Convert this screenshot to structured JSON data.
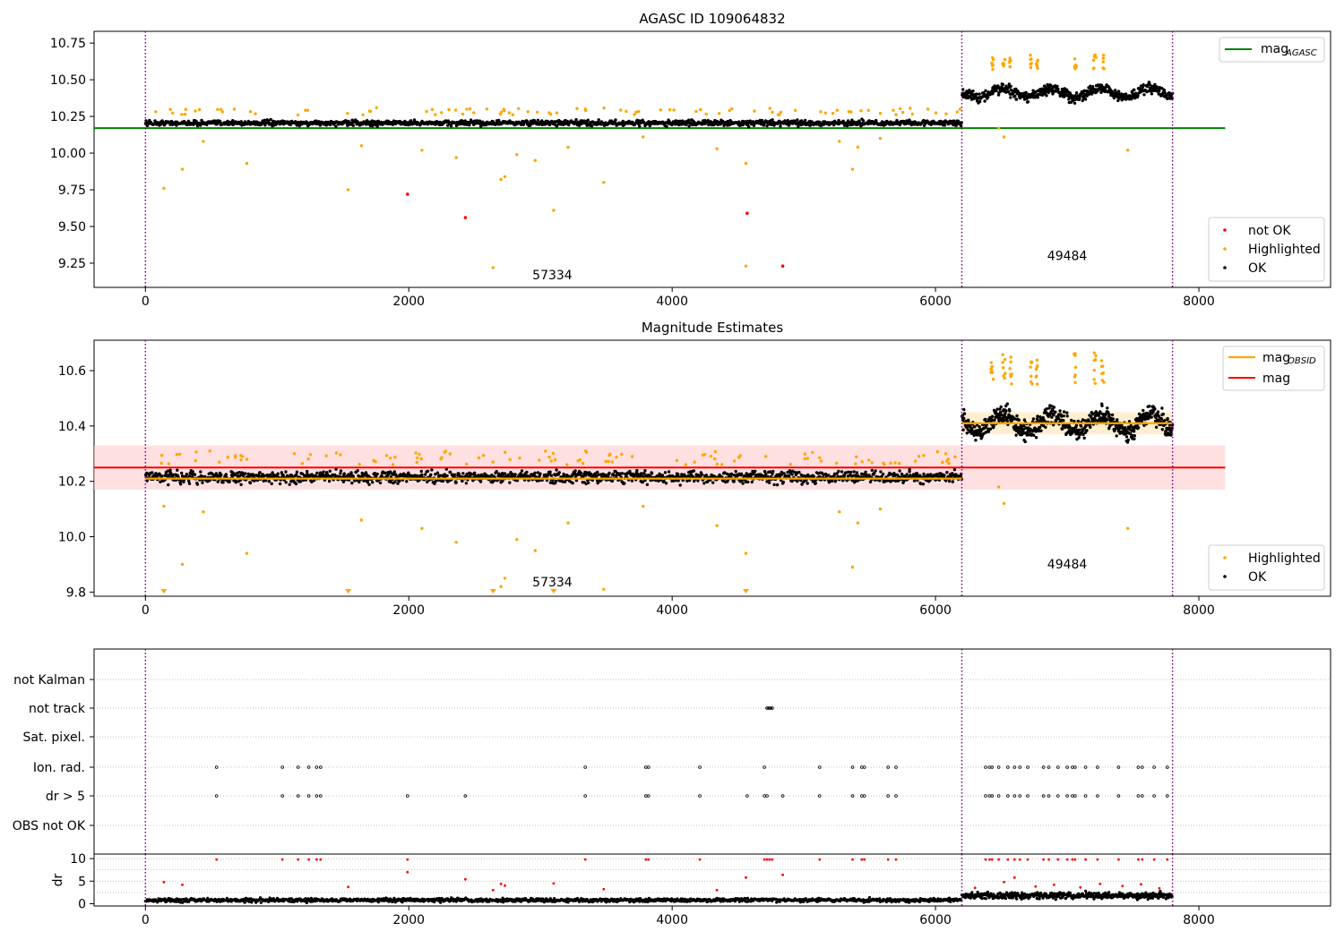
{
  "colors": {
    "ok": "#000000",
    "highlighted": "#ffa500",
    "not_ok": "#ff0000",
    "agasc_line": "#008000",
    "obsid_line": "#ffa500",
    "mag_line": "#ff0000",
    "band": "#ffcccc",
    "obs_boundary": "#800080",
    "grid": "#b0b0b0"
  },
  "chart_data": [
    {
      "type": "scatter",
      "title": "AGASC ID 109064832",
      "xlabel": "",
      "ylabel": "",
      "xlim": [
        -390,
        9000
      ],
      "ylim": [
        9.085,
        10.83
      ],
      "xticks": [
        "0",
        "2000",
        "4000",
        "6000",
        "8000"
      ],
      "yticks": [
        "9.25",
        "9.50",
        "9.75",
        "10.00",
        "10.25",
        "10.50",
        "10.75"
      ],
      "series": [
        {
          "name": "OK",
          "style": "dense band",
          "segments": [
            {
              "x": [
                0,
                6200
              ],
              "y": 10.205,
              "spread": 0.03
            },
            {
              "x": [
                6200,
                7800
              ],
              "y": 10.41,
              "spread": 0.06
            }
          ]
        },
        {
          "name": "Highlighted",
          "points": [
            [
              140,
              9.76
            ],
            [
              280,
              9.89
            ],
            [
              440,
              10.08
            ],
            [
              770,
              9.93
            ],
            [
              1540,
              9.75
            ],
            [
              1640,
              10.05
            ],
            [
              2100,
              10.02
            ],
            [
              2360,
              9.97
            ],
            [
              2640,
              9.22
            ],
            [
              2700,
              9.82
            ],
            [
              2730,
              9.84
            ],
            [
              2820,
              9.99
            ],
            [
              2960,
              9.95
            ],
            [
              3100,
              9.61
            ],
            [
              3210,
              10.04
            ],
            [
              3480,
              9.8
            ],
            [
              3780,
              10.11
            ],
            [
              4340,
              10.03
            ],
            [
              4560,
              9.93
            ],
            [
              4560,
              9.23
            ],
            [
              5270,
              10.08
            ],
            [
              5370,
              9.89
            ],
            [
              5410,
              10.04
            ],
            [
              5580,
              10.1
            ],
            [
              6480,
              10.17
            ],
            [
              6520,
              10.11
            ],
            [
              7460,
              10.02
            ]
          ]
        },
        {
          "name": "not OK",
          "points": [
            [
              1990,
              9.72
            ],
            [
              2430,
              9.56
            ],
            [
              4570,
              9.59
            ],
            [
              4840,
              9.23
            ]
          ]
        },
        {
          "name": "mag_AGASC",
          "type": "line",
          "y": 10.17,
          "x": [
            -390,
            8200
          ]
        }
      ],
      "legend_lines": {
        "base": "mag",
        "sub": "AGASC"
      },
      "legend_points": [
        "not OK",
        "Highlighted",
        "OK"
      ],
      "obs_boundaries": [
        0,
        6200,
        7800
      ],
      "obs_labels": [
        {
          "x": 3090,
          "y": 9.14,
          "text": "57334"
        },
        {
          "x": 7000,
          "y": 9.27,
          "text": "49484"
        }
      ]
    },
    {
      "type": "scatter",
      "title": "Magnitude Estimates",
      "xlabel": "",
      "ylabel": "",
      "xlim": [
        -390,
        9000
      ],
      "ylim": [
        9.785,
        10.71
      ],
      "xticks": [
        "0",
        "2000",
        "4000",
        "6000",
        "8000"
      ],
      "yticks": [
        "9.8",
        "10.0",
        "10.2",
        "10.4",
        "10.6"
      ],
      "series": [
        {
          "name": "OK",
          "style": "dense band",
          "segments": [
            {
              "x": [
                0,
                6200
              ],
              "y": 10.215,
              "spread": 0.035
            },
            {
              "x": [
                6200,
                7800
              ],
              "y": 10.41,
              "spread": 0.06
            }
          ]
        },
        {
          "name": "Highlighted",
          "points": [
            [
              140,
              10.11
            ],
            [
              280,
              9.9
            ],
            [
              440,
              10.09
            ],
            [
              770,
              9.94
            ],
            [
              1640,
              10.06
            ],
            [
              2100,
              10.03
            ],
            [
              2360,
              9.98
            ],
            [
              2700,
              9.82
            ],
            [
              2730,
              9.85
            ],
            [
              2820,
              9.99
            ],
            [
              2960,
              9.95
            ],
            [
              3210,
              10.05
            ],
            [
              3480,
              9.81
            ],
            [
              3780,
              10.11
            ],
            [
              4340,
              10.04
            ],
            [
              4560,
              9.94
            ],
            [
              5270,
              10.09
            ],
            [
              5370,
              9.89
            ],
            [
              5410,
              10.05
            ],
            [
              5580,
              10.1
            ],
            [
              6480,
              10.18
            ],
            [
              6520,
              10.12
            ],
            [
              7460,
              10.03
            ]
          ]
        },
        {
          "name": "mag_OBSID",
          "type": "step",
          "segments": [
            {
              "x": [
                0,
                6200
              ],
              "y": 10.21
            },
            {
              "x": [
                6200,
                7800
              ],
              "y": 10.41
            }
          ]
        },
        {
          "name": "mag",
          "type": "line",
          "y": 10.25,
          "x": [
            -390,
            8200
          ],
          "band": [
            10.17,
            10.33
          ]
        }
      ],
      "lower_limit_markers": [
        140,
        1540,
        2640,
        3100,
        4560
      ],
      "legend_lines": [
        {
          "base": "mag",
          "sub": "OBSID"
        },
        {
          "base": "mag",
          "sub": ""
        }
      ],
      "legend_points": [
        "Highlighted",
        "OK"
      ],
      "obs_boundaries": [
        0,
        6200,
        7800
      ],
      "obs_labels": [
        {
          "x": 3090,
          "y": 9.82,
          "text": "57334"
        },
        {
          "x": 7000,
          "y": 9.885,
          "text": "49484"
        }
      ]
    },
    {
      "type": "scatter",
      "title": "",
      "xlabel": "",
      "ylabel": "",
      "xlim": [
        -390,
        9000
      ],
      "xticks": [
        "0",
        "2000",
        "4000",
        "6000",
        "8000"
      ],
      "categories": [
        "not Kalman",
        "not track",
        "Sat. pixel.",
        "Ion. rad.",
        "dr > 5",
        "OBS not OK"
      ],
      "flags": {
        "not Kalman": [],
        "not track": [
          4720,
          4730,
          4740,
          4750,
          4760
        ],
        "Sat. pixel.": [],
        "Ion. rad.": [
          540,
          1040,
          1160,
          1240,
          1300,
          1330,
          3340,
          3800,
          3820,
          4210,
          4700,
          5120,
          5370,
          5440,
          5460,
          5640,
          5700,
          6380,
          6410,
          6430,
          6480,
          6550,
          6600,
          6640,
          6700,
          6820,
          6860,
          6930,
          7000,
          7040,
          7060,
          7140,
          7230,
          7390,
          7540,
          7570,
          7660,
          7760
        ],
        "dr > 5": [
          540,
          1040,
          1160,
          1240,
          1300,
          1330,
          1990,
          2430,
          3340,
          3800,
          3820,
          4210,
          4570,
          4700,
          4720,
          4840,
          5120,
          5370,
          5440,
          5460,
          5640,
          5700,
          6380,
          6410,
          6430,
          6480,
          6550,
          6600,
          6640,
          6700,
          6820,
          6860,
          6930,
          7000,
          7040,
          7060,
          7140,
          7230,
          7390,
          7540,
          7570,
          7660,
          7760
        ],
        "OBS not OK": []
      },
      "obs_boundaries": [
        0,
        6200,
        7800
      ]
    },
    {
      "type": "scatter",
      "title": "",
      "xlabel": "",
      "ylabel": "dr",
      "xlim": [
        -390,
        9000
      ],
      "ylim": [
        -0.5,
        11
      ],
      "xticks": [
        "0",
        "2000",
        "4000",
        "6000",
        "8000"
      ],
      "yticks": [
        "0",
        "5",
        "10"
      ],
      "series": [
        {
          "name": "dr OK",
          "style": "dense band",
          "segments": [
            {
              "x": [
                0,
                6200
              ],
              "y": 0.8,
              "spread": 0.7
            },
            {
              "x": [
                6200,
                7800
              ],
              "y": 1.8,
              "spread": 1.2
            }
          ]
        },
        {
          "name": "dr flagged",
          "points": [
            [
              140,
              4.8
            ],
            [
              280,
              4.2
            ],
            [
              540,
              9.8
            ],
            [
              1040,
              9.8
            ],
            [
              1160,
              9.8
            ],
            [
              1240,
              9.8
            ],
            [
              1300,
              9.8
            ],
            [
              1330,
              9.8
            ],
            [
              1540,
              3.7
            ],
            [
              1990,
              9.8
            ],
            [
              1990,
              7.0
            ],
            [
              2430,
              5.4
            ],
            [
              2640,
              3.0
            ],
            [
              2700,
              4.4
            ],
            [
              2730,
              4.0
            ],
            [
              3100,
              4.5
            ],
            [
              3340,
              9.8
            ],
            [
              3480,
              3.2
            ],
            [
              3800,
              9.8
            ],
            [
              3820,
              9.8
            ],
            [
              4210,
              9.8
            ],
            [
              4340,
              3.0
            ],
            [
              4560,
              5.8
            ],
            [
              4700,
              9.8
            ],
            [
              4720,
              9.8
            ],
            [
              4740,
              9.8
            ],
            [
              4760,
              9.8
            ],
            [
              4840,
              6.4
            ],
            [
              5120,
              9.8
            ],
            [
              5370,
              9.8
            ],
            [
              5440,
              9.8
            ],
            [
              5460,
              9.8
            ],
            [
              5640,
              9.8
            ],
            [
              5700,
              9.8
            ],
            [
              6380,
              9.8
            ],
            [
              6410,
              9.8
            ],
            [
              6430,
              9.8
            ],
            [
              6480,
              9.8
            ],
            [
              6550,
              9.8
            ],
            [
              6600,
              9.8
            ],
            [
              6640,
              9.8
            ],
            [
              6700,
              9.8
            ],
            [
              6820,
              9.8
            ],
            [
              6860,
              9.8
            ],
            [
              6930,
              9.8
            ],
            [
              7000,
              9.8
            ],
            [
              7040,
              9.8
            ],
            [
              7060,
              9.8
            ],
            [
              7140,
              9.8
            ],
            [
              7230,
              9.8
            ],
            [
              7390,
              9.8
            ],
            [
              7540,
              9.8
            ],
            [
              7570,
              9.8
            ],
            [
              7660,
              9.8
            ],
            [
              7760,
              9.8
            ],
            [
              6300,
              3.5
            ],
            [
              6520,
              4.8
            ],
            [
              6600,
              5.8
            ],
            [
              6760,
              3.8
            ],
            [
              6900,
              4.2
            ],
            [
              7100,
              3.6
            ],
            [
              7250,
              4.4
            ],
            [
              7420,
              3.9
            ],
            [
              7560,
              4.3
            ],
            [
              7700,
              3.4
            ]
          ]
        }
      ],
      "obs_boundaries": [
        0,
        6200,
        7800
      ]
    }
  ]
}
